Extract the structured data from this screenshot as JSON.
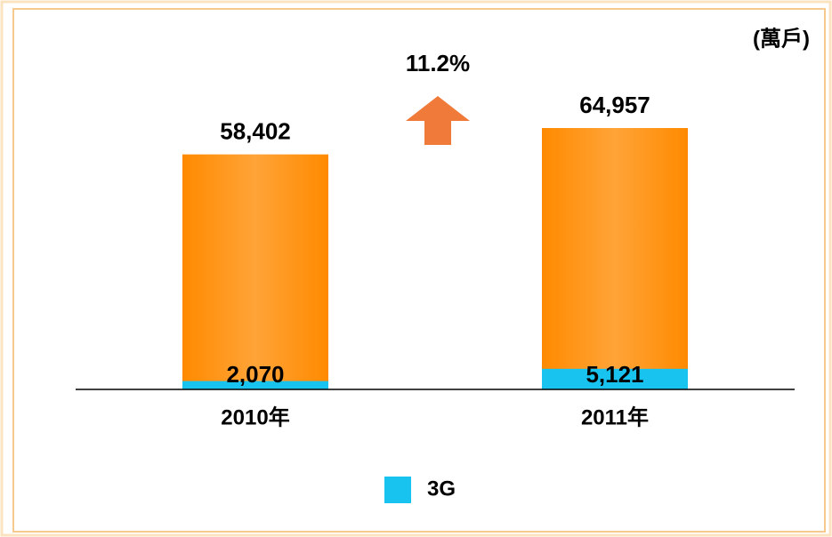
{
  "chart_data": {
    "type": "bar",
    "unit_label": "(萬戶)",
    "annotation": "11.2%",
    "categories": [
      "2010年",
      "2011年"
    ],
    "series": [
      {
        "color": "#ff8a00",
        "values": [
          58402,
          64957
        ],
        "value_labels": [
          "58,402",
          "64,957"
        ]
      },
      {
        "name": "3G",
        "color": "#19c3f0",
        "values": [
          2070,
          5121
        ],
        "value_labels": [
          "2,070",
          "5,121"
        ]
      }
    ],
    "annotation_color": "#f07a3a"
  }
}
